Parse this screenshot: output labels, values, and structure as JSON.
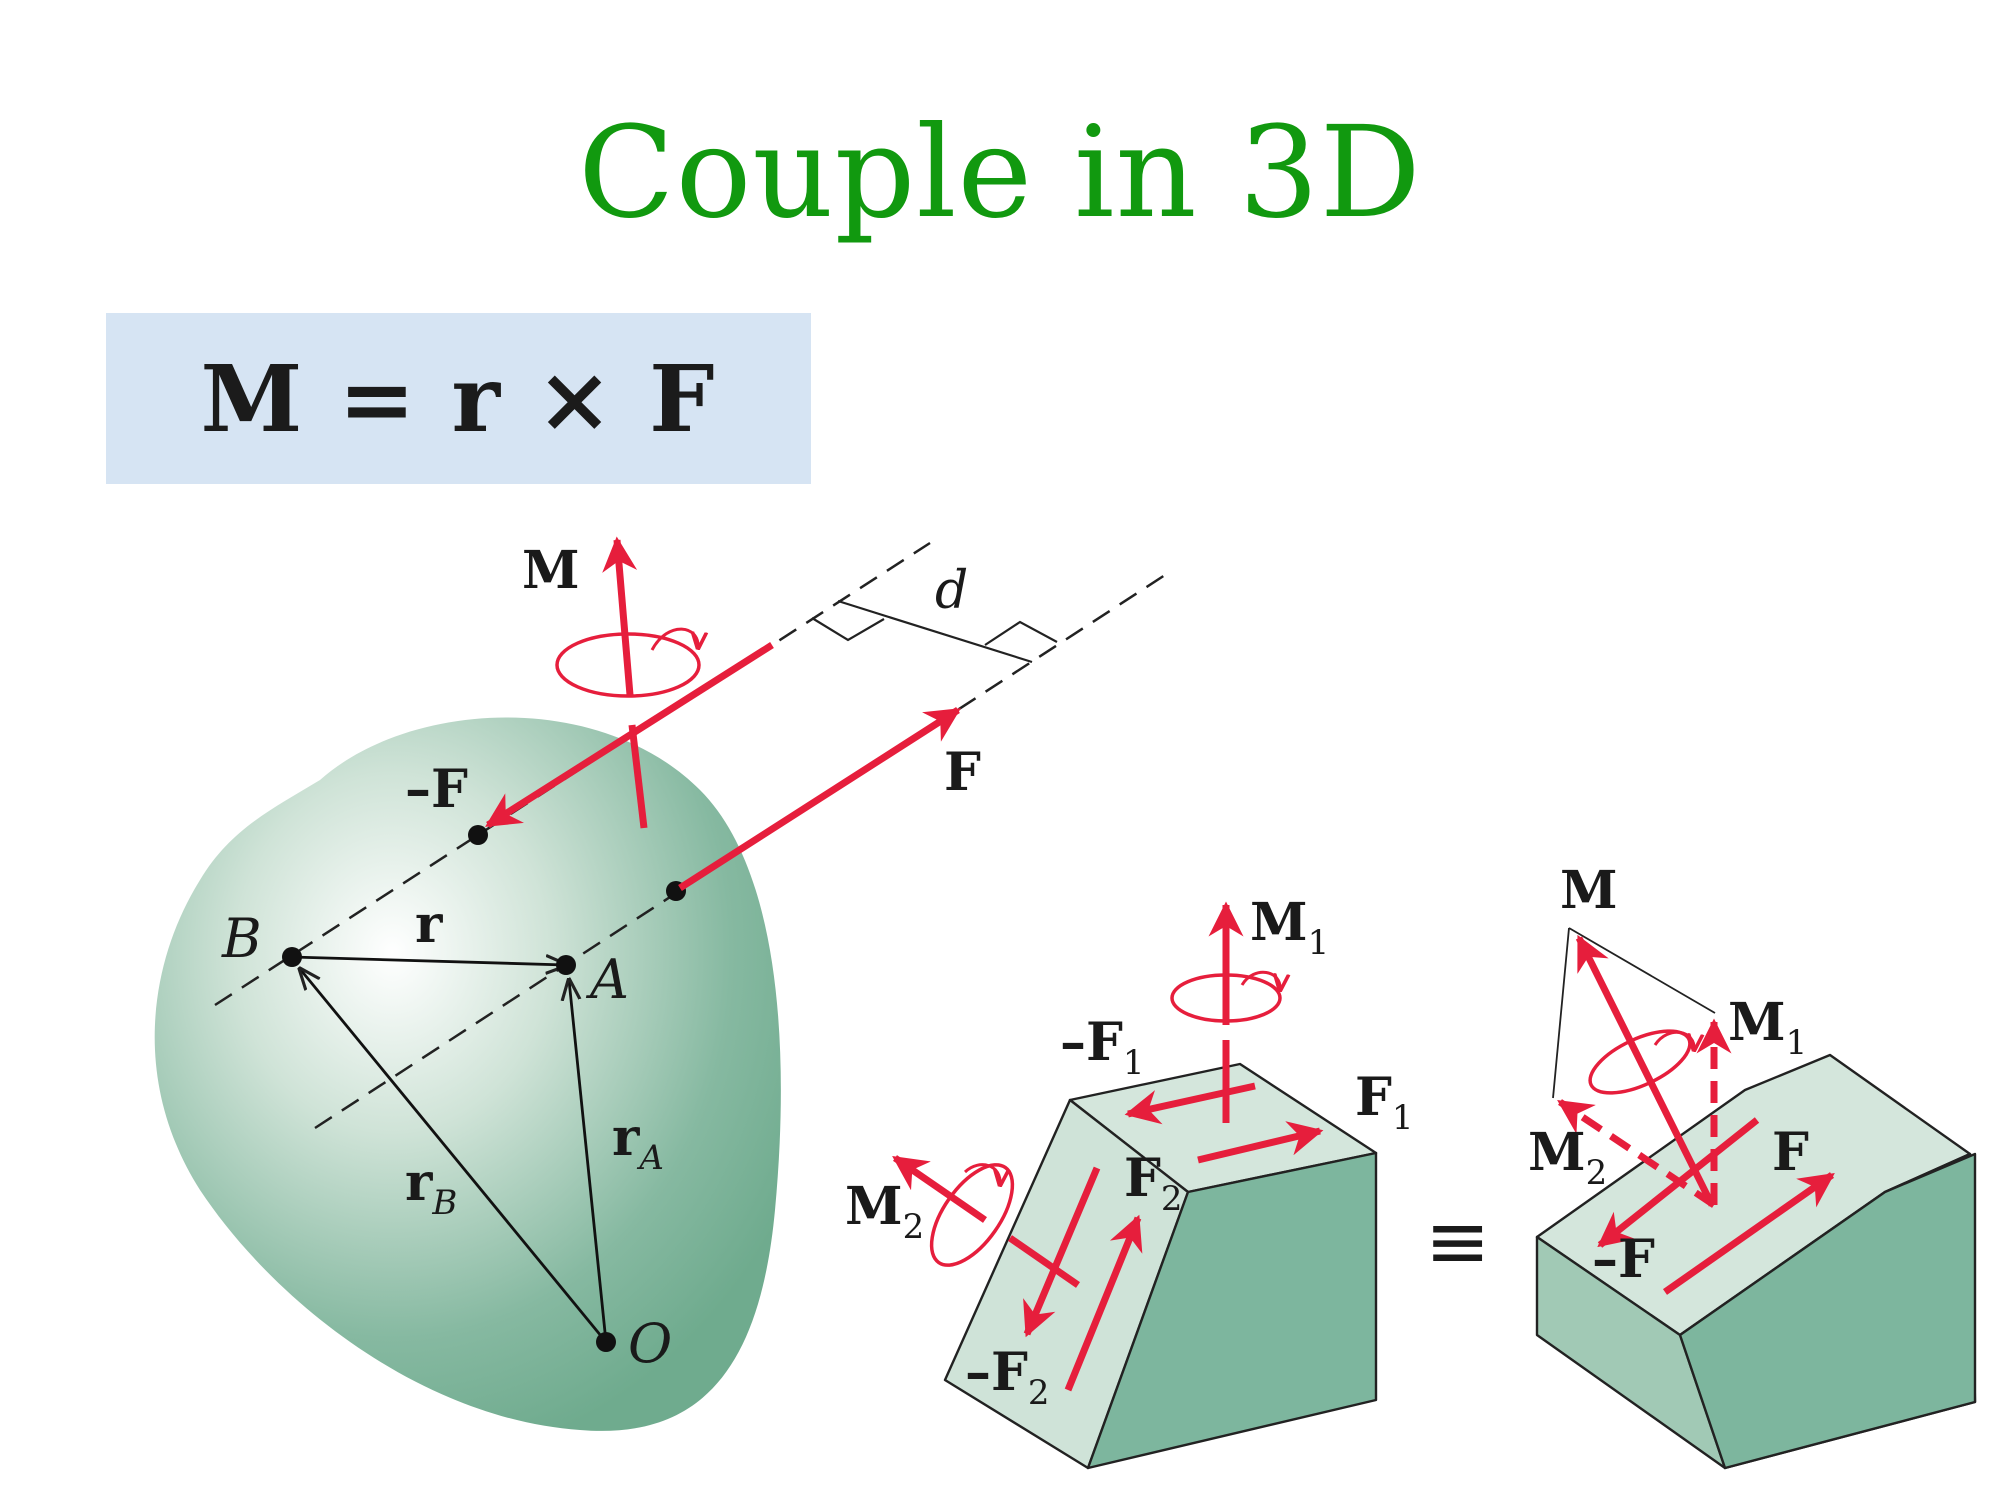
{
  "title": "Couple in 3D",
  "formula": "M = r × F",
  "colors": {
    "title": "#11990f",
    "formula_box": "#d6e4f3",
    "body_green": "#7db69e",
    "force_red": "#e61e3c"
  },
  "left_figure": {
    "labels": {
      "M": "M",
      "d": "d",
      "F": "F",
      "neg_F": "–F",
      "B": "B",
      "A": "A",
      "O": "O",
      "r": "r",
      "rA_main": "r",
      "rA_sub": "A",
      "rB_main": "r",
      "rB_sub": "B"
    }
  },
  "middle_figure": {
    "labels": {
      "M1_main": "M",
      "M1_sub": "1",
      "negF1_main": "–F",
      "negF1_sub": "1",
      "F1_main": "F",
      "F1_sub": "1",
      "F2_main": "F",
      "F2_sub": "2",
      "M2_main": "M",
      "M2_sub": "2",
      "negF2_main": "–F",
      "negF2_sub": "2"
    }
  },
  "equivalence_symbol": "≡",
  "right_figure": {
    "labels": {
      "M": "M",
      "M1_main": "M",
      "M1_sub": "1",
      "M2_main": "M",
      "M2_sub": "2",
      "F": "F",
      "neg_F": "–F"
    }
  }
}
